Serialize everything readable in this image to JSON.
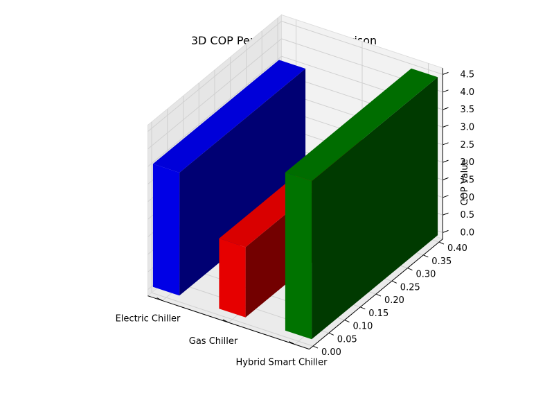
{
  "chart_data": {
    "type": "bar",
    "title": "3D COP Performance Comparison",
    "xlabel": "",
    "ylabel": "",
    "zlabel": "COP Value",
    "categories": [
      "Electric Chiller",
      "Gas Chiller",
      "Hybrid Smart Chiller"
    ],
    "values": [
      3.5,
      2.0,
      4.5
    ],
    "bar_colors": [
      "#0000ff",
      "#ff0000",
      "#008000"
    ],
    "bar_depth": 0.4,
    "zlim": [
      0,
      4.5
    ],
    "z_ticks": [
      "0.0",
      "0.5",
      "1.0",
      "1.5",
      "2.0",
      "2.5",
      "3.0",
      "3.5",
      "4.0",
      "4.5"
    ],
    "ylim": [
      0,
      0.4
    ],
    "y_ticks": [
      "0.00",
      "0.05",
      "0.10",
      "0.15",
      "0.20",
      "0.25",
      "0.30",
      "0.35",
      "0.40"
    ],
    "grid": true,
    "legend": "none"
  }
}
